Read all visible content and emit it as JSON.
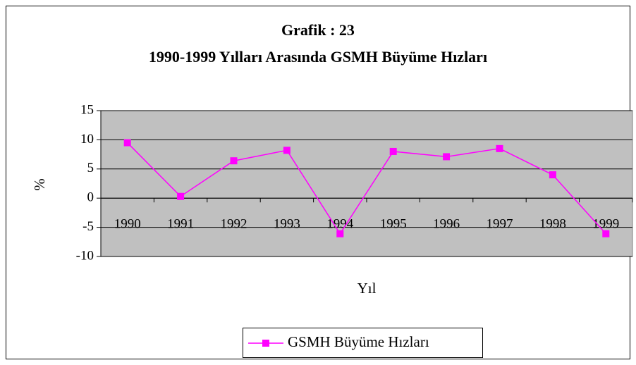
{
  "chart_data": {
    "type": "line",
    "title": "Grafik : 23",
    "subtitle": "1990-1999 Yılları Arasında GSMH Büyüme Hızları",
    "x_label": "Yıl",
    "y_label": "%",
    "categories": [
      "1990",
      "1991",
      "1992",
      "1993",
      "1994",
      "1995",
      "1996",
      "1997",
      "1998",
      "1999"
    ],
    "series": [
      {
        "name": "GSMH Büyüme Hızları",
        "color": "#ff00ff",
        "values": [
          9.5,
          0.3,
          6.4,
          8.2,
          -6.1,
          8.0,
          7.1,
          8.5,
          4.0,
          -6.1
        ]
      }
    ],
    "ylim": [
      -10,
      15
    ],
    "yticks": [
      -10,
      -5,
      0,
      5,
      10,
      15
    ],
    "grid": true,
    "plot_background": "#c0c0c0",
    "legend_position": "bottom"
  }
}
